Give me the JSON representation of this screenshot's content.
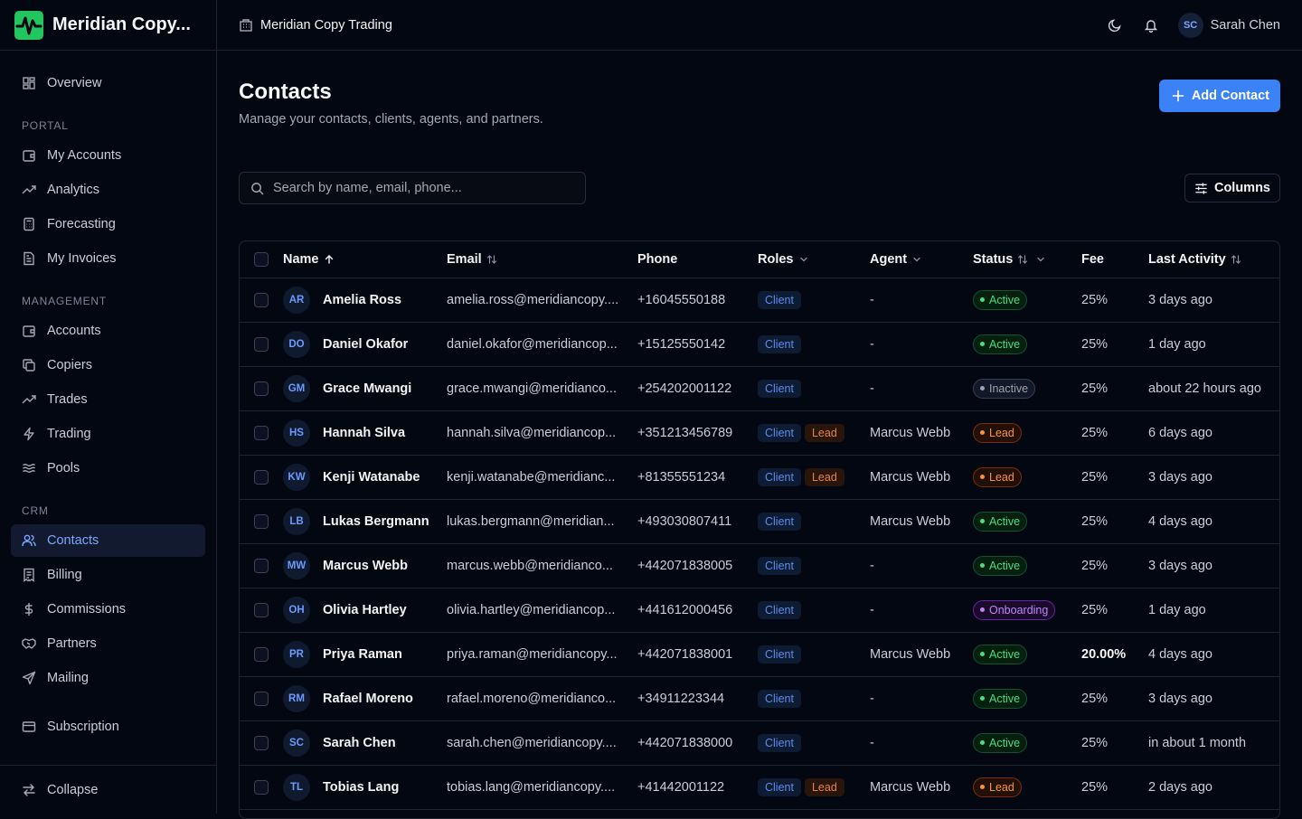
{
  "app": {
    "name": "Meridian Copy...",
    "org_name": "Meridian Copy Trading"
  },
  "user": {
    "initials": "SC",
    "name": "Sarah Chen"
  },
  "sidebar": {
    "overview": "Overview",
    "portal_label": "PORTAL",
    "portal": [
      "My Accounts",
      "Analytics",
      "Forecasting",
      "My Invoices"
    ],
    "management_label": "MANAGEMENT",
    "management": [
      "Accounts",
      "Copiers",
      "Trades",
      "Trading",
      "Pools"
    ],
    "crm_label": "CRM",
    "crm": [
      "Contacts",
      "Billing",
      "Commissions",
      "Partners",
      "Mailing"
    ],
    "subscription": "Subscription",
    "collapse": "Collapse",
    "active_item": "Contacts"
  },
  "page": {
    "title": "Contacts",
    "subtitle": "Manage your contacts, clients, agents, and partners.",
    "add_button": "Add Contact",
    "search_placeholder": "Search by name, email, phone...",
    "columns_button": "Columns"
  },
  "table": {
    "headers": {
      "name": "Name",
      "email": "Email",
      "phone": "Phone",
      "roles": "Roles",
      "agent": "Agent",
      "status": "Status",
      "fee": "Fee",
      "last_activity": "Last Activity"
    },
    "rows": [
      {
        "initials": "AR",
        "name": "Amelia Ross",
        "email": "amelia.ross@meridiancopy....",
        "phone": "+16045550188",
        "roles": [
          "Client"
        ],
        "agent": "-",
        "status": "Active",
        "fee": "25%",
        "last_activity": "3 days ago"
      },
      {
        "initials": "DO",
        "name": "Daniel Okafor",
        "email": "daniel.okafor@meridiancop...",
        "phone": "+15125550142",
        "roles": [
          "Client"
        ],
        "agent": "-",
        "status": "Active",
        "fee": "25%",
        "last_activity": "1 day ago"
      },
      {
        "initials": "GM",
        "name": "Grace Mwangi",
        "email": "grace.mwangi@meridianco...",
        "phone": "+254202001122",
        "roles": [
          "Client"
        ],
        "agent": "-",
        "status": "Inactive",
        "fee": "25%",
        "last_activity": "about 22 hours ago"
      },
      {
        "initials": "HS",
        "name": "Hannah Silva",
        "email": "hannah.silva@meridiancop...",
        "phone": "+351213456789",
        "roles": [
          "Client",
          "Lead"
        ],
        "agent": "Marcus Webb",
        "status": "Lead",
        "fee": "25%",
        "last_activity": "6 days ago"
      },
      {
        "initials": "KW",
        "name": "Kenji Watanabe",
        "email": "kenji.watanabe@meridianc...",
        "phone": "+81355551234",
        "roles": [
          "Client",
          "Lead"
        ],
        "agent": "Marcus Webb",
        "status": "Lead",
        "fee": "25%",
        "last_activity": "3 days ago"
      },
      {
        "initials": "LB",
        "name": "Lukas Bergmann",
        "email": "lukas.bergmann@meridian...",
        "phone": "+493030807411",
        "roles": [
          "Client"
        ],
        "agent": "Marcus Webb",
        "status": "Active",
        "fee": "25%",
        "last_activity": "4 days ago"
      },
      {
        "initials": "MW",
        "name": "Marcus Webb",
        "email": "marcus.webb@meridianco...",
        "phone": "+442071838005",
        "roles": [
          "Client"
        ],
        "agent": "-",
        "status": "Active",
        "fee": "25%",
        "last_activity": "3 days ago"
      },
      {
        "initials": "OH",
        "name": "Olivia Hartley",
        "email": "olivia.hartley@meridiancop...",
        "phone": "+441612000456",
        "roles": [
          "Client"
        ],
        "agent": "-",
        "status": "Onboarding",
        "fee": "25%",
        "last_activity": "1 day ago"
      },
      {
        "initials": "PR",
        "name": "Priya Raman",
        "email": "priya.raman@meridiancopy...",
        "phone": "+442071838001",
        "roles": [
          "Client"
        ],
        "agent": "Marcus Webb",
        "status": "Active",
        "fee": "20.00%",
        "fee_emphasis": true,
        "last_activity": "4 days ago"
      },
      {
        "initials": "RM",
        "name": "Rafael Moreno",
        "email": "rafael.moreno@meridianco...",
        "phone": "+34911223344",
        "roles": [
          "Client"
        ],
        "agent": "-",
        "status": "Active",
        "fee": "25%",
        "last_activity": "3 days ago"
      },
      {
        "initials": "SC",
        "name": "Sarah Chen",
        "email": "sarah.chen@meridiancopy....",
        "phone": "+442071838000",
        "roles": [
          "Client"
        ],
        "agent": "-",
        "status": "Active",
        "fee": "25%",
        "last_activity": "in about 1 month"
      },
      {
        "initials": "TL",
        "name": "Tobias Lang",
        "email": "tobias.lang@meridiancopy....",
        "phone": "+41442001122",
        "roles": [
          "Client",
          "Lead"
        ],
        "agent": "Marcus Webb",
        "status": "Lead",
        "fee": "25%",
        "last_activity": "2 days ago"
      }
    ]
  },
  "colors": {
    "background": "#030712",
    "accent": "#3b82f6",
    "active_nav": "#7ea7ff",
    "status_active": "#4ade80",
    "status_lead": "#fb923c",
    "status_onboarding": "#c084fc",
    "status_inactive": "#9ca3af"
  }
}
